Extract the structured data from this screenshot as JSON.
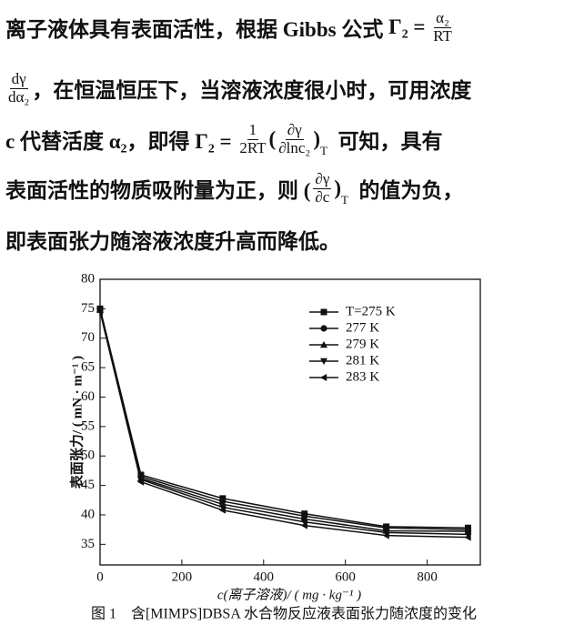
{
  "paragraph": [
    [
      "离子液体具有表面活性，根据 Gibbs 公式 ",
      "Γ₂ = ",
      {
        "num": "α₂",
        "den": "RT"
      }
    ],
    [
      {
        "num": "dγ",
        "den": "dα₂"
      },
      "，在恒温恒压下，当溶液浓度很小时，可用浓度"
    ],
    [
      "c 代替活度 α₂，即得 Γ₂ = ",
      {
        "num": "1",
        "den": "2RT"
      },
      "(",
      {
        "num": "∂γ",
        "den": "∂lnc₂"
      },
      ")",
      {
        "sub": "T"
      },
      "  可知，具有"
    ],
    [
      "表面活性的物质吸附量为正，则 (",
      {
        "num": "∂γ",
        "den": "∂c"
      },
      ")",
      {
        "sub": "T"
      },
      "  的值为负，"
    ],
    [
      "即表面张力随溶液浓度升高而降低。"
    ]
  ],
  "figure_caption": "图 1　含[MIMPS]DBSA 水合物反应液表面张力随浓度的变化",
  "chart_data": {
    "type": "line",
    "x_label": "c(离子溶液)/ ( mg · kg⁻¹ )",
    "y_label": "表面张力/ ( mN · m⁻¹ )",
    "x": [
      0,
      100,
      300,
      500,
      700,
      900
    ],
    "series": [
      {
        "name": "T=275 K",
        "color": "#111111",
        "marker": "square",
        "values": [
          75,
          46.8,
          42.8,
          40.2,
          38,
          37.8
        ]
      },
      {
        "name": "277 K",
        "color": "#111111",
        "marker": "circle",
        "values": [
          75,
          46.5,
          42.3,
          39.8,
          37.8,
          37.5
        ]
      },
      {
        "name": "279 K",
        "color": "#111111",
        "marker": "triangle-up",
        "values": [
          74.8,
          46.2,
          41.8,
          39.3,
          37.3,
          37.2
        ]
      },
      {
        "name": "281 K",
        "color": "#111111",
        "marker": "triangle-down",
        "values": [
          74.6,
          46,
          41.3,
          38.8,
          37,
          36.7
        ]
      },
      {
        "name": "283 K",
        "color": "#111111",
        "marker": "triangle-left",
        "values": [
          74.5,
          45.6,
          40.8,
          38.2,
          36.5,
          36.2
        ]
      }
    ],
    "xlim": [
      0,
      930
    ],
    "ylim": [
      31.5,
      80
    ],
    "xticks": [
      0,
      200,
      400,
      600,
      800
    ],
    "yticks": [
      35,
      40,
      45,
      50,
      55,
      60,
      65,
      70,
      75,
      80
    ]
  }
}
